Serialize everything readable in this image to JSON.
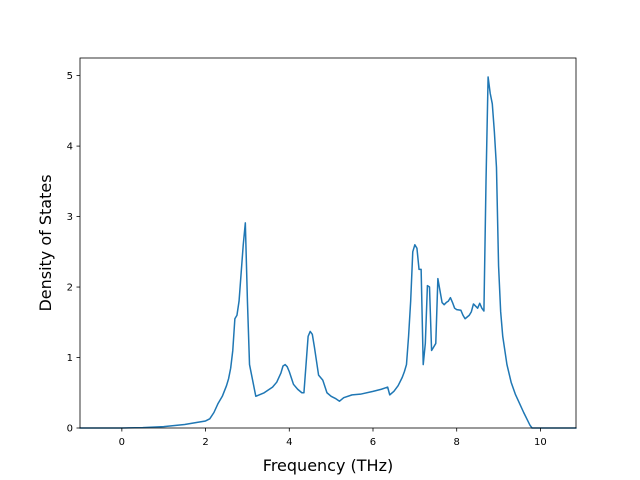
{
  "chart_data": {
    "type": "line",
    "title": "",
    "xlabel": "Frequency (THz)",
    "ylabel": "Density of States",
    "xlim": [
      -1.0,
      10.85
    ],
    "ylim": [
      0,
      5.25
    ],
    "xticks": [
      0,
      2,
      4,
      6,
      8,
      10
    ],
    "yticks": [
      0,
      1,
      2,
      3,
      4,
      5
    ],
    "grid": false,
    "legend": "none",
    "series": [
      {
        "color": "#1f77b4",
        "x": [
          -1.0,
          -0.5,
          0.0,
          0.5,
          1.0,
          1.5,
          1.8,
          2.0,
          2.1,
          2.2,
          2.3,
          2.4,
          2.5,
          2.55,
          2.6,
          2.65,
          2.7,
          2.75,
          2.8,
          2.85,
          2.9,
          2.95,
          3.0,
          3.05,
          3.2,
          3.4,
          3.6,
          3.7,
          3.8,
          3.85,
          3.9,
          3.95,
          4.0,
          4.1,
          4.2,
          4.3,
          4.35,
          4.4,
          4.45,
          4.5,
          4.55,
          4.6,
          4.65,
          4.7,
          4.8,
          4.9,
          5.0,
          5.1,
          5.2,
          5.3,
          5.5,
          5.7,
          6.0,
          6.2,
          6.3,
          6.35,
          6.4,
          6.5,
          6.6,
          6.7,
          6.75,
          6.8,
          6.85,
          6.9,
          6.95,
          7.0,
          7.05,
          7.1,
          7.15,
          7.2,
          7.25,
          7.3,
          7.35,
          7.4,
          7.45,
          7.5,
          7.55,
          7.6,
          7.65,
          7.7,
          7.75,
          7.8,
          7.85,
          7.9,
          7.95,
          8.0,
          8.1,
          8.15,
          8.2,
          8.3,
          8.35,
          8.4,
          8.45,
          8.5,
          8.55,
          8.6,
          8.65,
          8.7,
          8.75,
          8.8,
          8.85,
          8.9,
          8.95,
          9.0,
          9.05,
          9.1,
          9.2,
          9.3,
          9.4,
          9.5,
          9.6,
          9.7,
          9.75,
          9.8,
          9.85,
          10.0,
          10.5,
          10.85
        ],
        "y": [
          0.0,
          0.0,
          0.0,
          0.005,
          0.02,
          0.05,
          0.08,
          0.1,
          0.13,
          0.22,
          0.35,
          0.45,
          0.6,
          0.7,
          0.85,
          1.1,
          1.55,
          1.6,
          1.8,
          2.2,
          2.6,
          2.91,
          1.8,
          0.9,
          0.45,
          0.5,
          0.58,
          0.65,
          0.78,
          0.88,
          0.9,
          0.87,
          0.8,
          0.62,
          0.55,
          0.5,
          0.5,
          0.9,
          1.3,
          1.37,
          1.33,
          1.15,
          0.95,
          0.75,
          0.68,
          0.5,
          0.45,
          0.42,
          0.38,
          0.43,
          0.47,
          0.48,
          0.52,
          0.55,
          0.57,
          0.58,
          0.47,
          0.52,
          0.6,
          0.72,
          0.8,
          0.9,
          1.3,
          1.8,
          2.5,
          2.6,
          2.55,
          2.25,
          2.25,
          0.9,
          1.2,
          2.02,
          2.0,
          1.1,
          1.15,
          1.2,
          2.12,
          1.95,
          1.78,
          1.75,
          1.78,
          1.8,
          1.85,
          1.78,
          1.7,
          1.68,
          1.67,
          1.6,
          1.55,
          1.6,
          1.65,
          1.76,
          1.73,
          1.7,
          1.77,
          1.7,
          1.66,
          3.5,
          4.98,
          4.75,
          4.6,
          4.2,
          3.7,
          2.3,
          1.65,
          1.3,
          0.9,
          0.65,
          0.48,
          0.35,
          0.22,
          0.1,
          0.04,
          0.0,
          0.0,
          0.0,
          0.0,
          0.0
        ]
      }
    ]
  }
}
